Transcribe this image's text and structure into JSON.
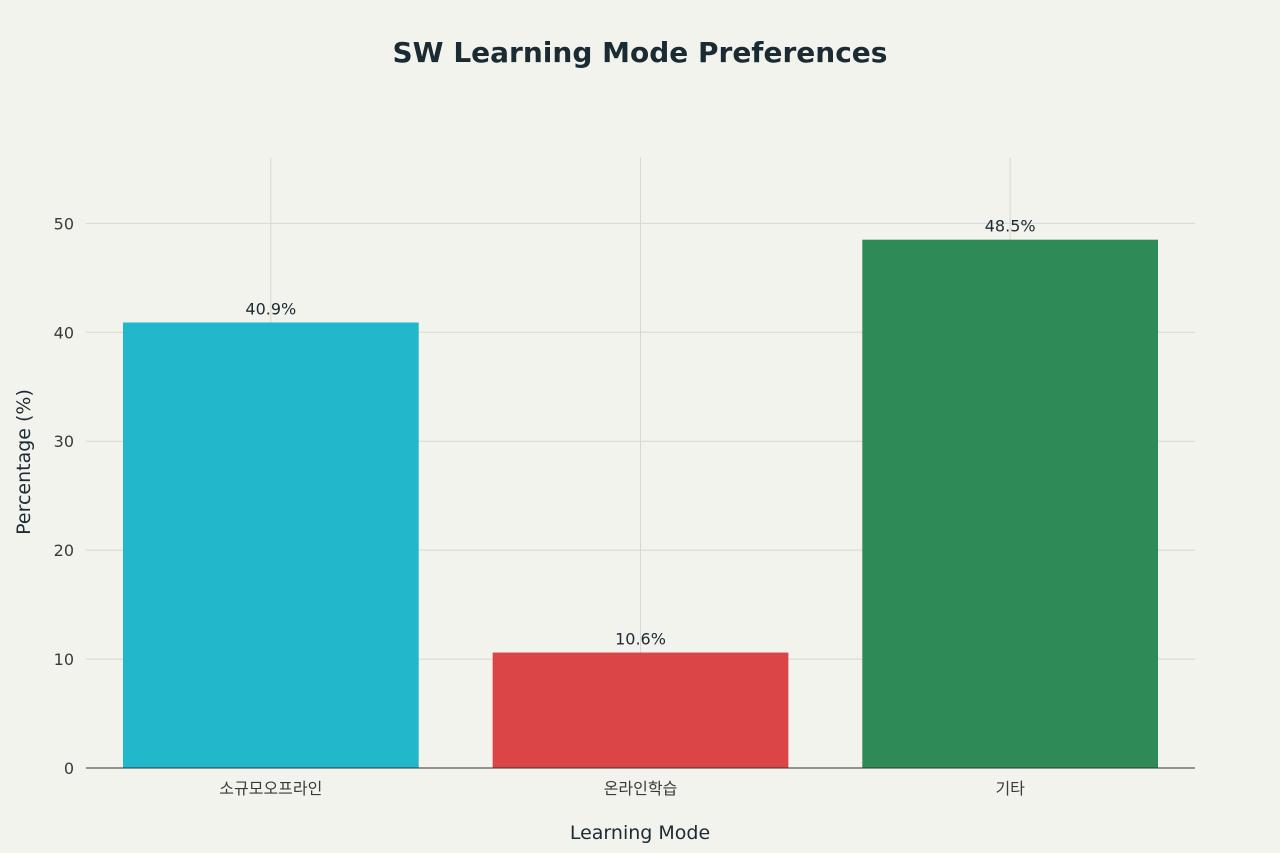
{
  "chart_data": {
    "type": "bar",
    "title": "SW Learning Mode Preferences",
    "xlabel": "Learning Mode",
    "ylabel": "Percentage (%)",
    "categories": [
      "소규모오프라인",
      "온라인학습",
      "기타"
    ],
    "values": [
      40.9,
      10.6,
      48.5
    ],
    "data_labels": [
      "40.9%",
      "10.6%",
      "48.5%"
    ],
    "colors": [
      "#21b8cc",
      "#db4548",
      "#2e8b57"
    ],
    "ylim": [
      0,
      56
    ],
    "yticks": [
      0,
      10,
      20,
      30,
      40,
      50
    ],
    "ytick_labels": [
      "0",
      "10",
      "20",
      "30",
      "40",
      "50"
    ],
    "grid": true,
    "legend": "none"
  }
}
